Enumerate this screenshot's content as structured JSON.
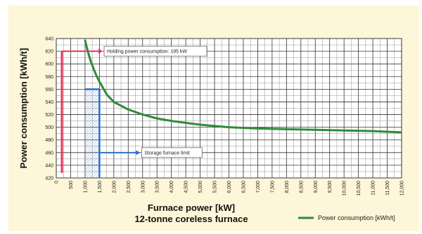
{
  "chart_data": {
    "type": "line",
    "xlabel": "Furnace power [kW]",
    "subtitle": "12-tonne coreless furnace",
    "ylabel": "Power consumption  [kWh/t]",
    "xlim": [
      0,
      12000
    ],
    "ylim": [
      420,
      640
    ],
    "x_ticks": [
      "0",
      "500",
      "1,000",
      "1,500",
      "2,000",
      "2,500",
      "3,000",
      "3,500",
      "4,000",
      "4,500",
      "5,000",
      "5,500",
      "6,000",
      "6,500",
      "7,000",
      "7,500",
      "8,000",
      "8,500",
      "9,000",
      "9,500",
      "10,000",
      "10,500",
      "11,000",
      "11,500",
      "12,000"
    ],
    "y_ticks": [
      "420",
      "440",
      "460",
      "480",
      "500",
      "520",
      "540",
      "560",
      "580",
      "600",
      "620",
      "640"
    ],
    "grid": true,
    "series": [
      {
        "name": "Power consumption [kWh/t]",
        "color": "#2e8b3a",
        "x": [
          1000,
          1050,
          1100,
          1200,
          1300,
          1400,
          1500,
          1750,
          2000,
          2500,
          3000,
          3500,
          4000,
          5000,
          6000,
          7000,
          8000,
          9000,
          10000,
          11000,
          12000
        ],
        "y": [
          638,
          628,
          619,
          604,
          592,
          581,
          572,
          552,
          540,
          528,
          520,
          514,
          510,
          504,
          500,
          498,
          497,
          496,
          495,
          494,
          492
        ]
      }
    ],
    "annotations": [
      {
        "text": "Holding power consumption: 195 kW",
        "color": "#e8365a",
        "y_from": 428,
        "y_to": 620,
        "arrow_y": 620,
        "x": 30
      },
      {
        "text": "Storage furnace limit",
        "color": "#2f6fc4",
        "x": 1500,
        "y_from": 420,
        "y_to": 560,
        "arrow_y": 460
      }
    ],
    "shaded_region": {
      "x_from": 1000,
      "x_to": 1500,
      "color": "#2f6fc4"
    },
    "legend_position": "bottom-right"
  }
}
